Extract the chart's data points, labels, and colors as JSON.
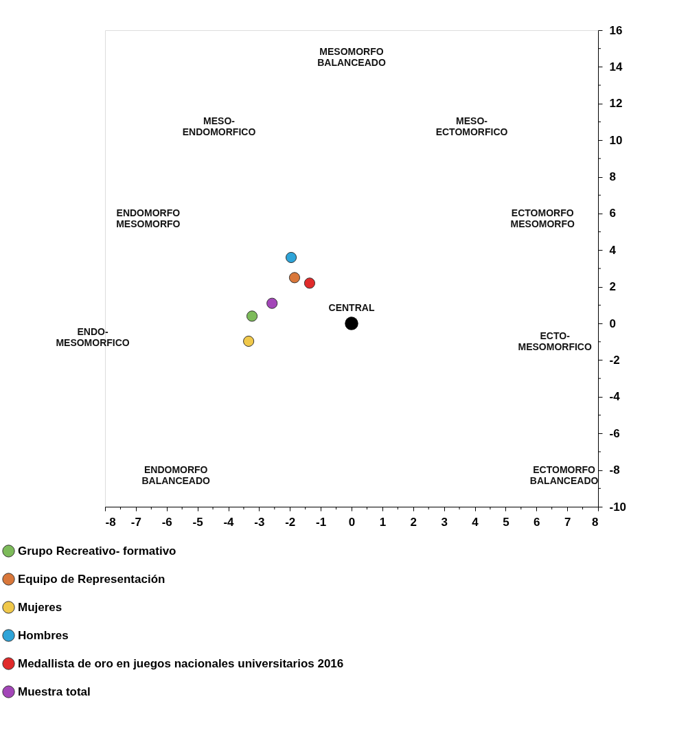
{
  "chart_data": {
    "type": "scatter",
    "series": [
      {
        "name": "Grupo Recreativo- formativo",
        "color": "#7dbb5a",
        "x": [
          -3.23
        ],
        "values": [
          0.4
        ]
      },
      {
        "name": "Equipo de Representación",
        "color": "#d9773a",
        "x": [
          -1.85
        ],
        "values": [
          2.5
        ]
      },
      {
        "name": "Mujeres",
        "color": "#f0c84a",
        "x": [
          -3.34
        ],
        "values": [
          -0.97
        ]
      },
      {
        "name": "Hombres",
        "color": "#2ea4d8",
        "x": [
          -1.96
        ],
        "values": [
          3.6
        ]
      },
      {
        "name": "Medallista de oro en juegos nacionales universitarios 2016",
        "color": "#e02a2a",
        "x": [
          -1.36
        ],
        "values": [
          2.2
        ]
      },
      {
        "name": "Muestra total",
        "color": "#a346b8",
        "x": [
          -2.58
        ],
        "values": [
          1.1
        ]
      },
      {
        "color": "#000000",
        "x": [
          0
        ],
        "values": [
          0
        ]
      }
    ],
    "annotations": [
      {
        "text": "CENTRAL",
        "x": 0,
        "y": 0
      },
      "MESOMORFO\nBALANCEADO",
      "MESO-\nENDOMORFICO",
      "MESO-\nECTOMORFICO",
      "ENDOMORFO\nMESOMORFO",
      "ECTOMORFO\nMESOMORFO",
      "ENDO-\nMESOMORFICO",
      "ECTO-\nMESOMORFICO",
      "ENDOMORFO\nBALANCEADO",
      "ECTOMORFO\nBALANCEADO"
    ],
    "xlim": [
      -8,
      8
    ],
    "xticks": [
      -8,
      {
        "value": -7.5,
        "label": null
      },
      -7,
      {
        "value": -6.5,
        "label": null
      },
      -6,
      {
        "value": -5.5,
        "label": null
      },
      -5,
      {
        "value": -4.5,
        "label": null
      },
      -4,
      {
        "value": -3.5,
        "label": null
      },
      -3,
      {
        "value": -2.5,
        "label": null
      },
      -2,
      {
        "value": -1.5,
        "label": null
      },
      -1,
      {
        "value": -0.5,
        "label": null
      },
      0,
      {
        "value": 0.5,
        "label": null
      },
      1,
      {
        "value": 1.5,
        "label": null
      },
      2,
      {
        "value": 2.5,
        "label": null
      },
      3,
      {
        "value": 3.5,
        "label": null
      },
      4,
      {
        "value": 4.5,
        "label": null
      },
      5,
      {
        "value": 5.5,
        "label": null
      },
      6,
      {
        "value": 6.5,
        "label": null
      },
      7,
      {
        "value": 7.5,
        "label": null
      },
      8
    ],
    "ylim": [
      -10,
      16
    ],
    "yticks": [
      -10,
      {
        "value": -9,
        "label": null
      },
      -8,
      {
        "value": -7,
        "label": null
      },
      -6,
      {
        "value": -5,
        "label": null
      },
      -4,
      {
        "value": -3,
        "label": null
      },
      -2,
      {
        "value": -1,
        "label": null
      },
      0,
      {
        "value": 1,
        "label": null
      },
      2,
      {
        "value": 3,
        "label": null
      },
      4,
      {
        "value": 5,
        "label": null
      },
      6,
      {
        "value": 7,
        "label": null
      },
      8,
      {
        "value": 9,
        "label": null
      },
      10,
      {
        "value": 11,
        "label": null
      },
      12,
      {
        "value": 13,
        "label": null
      },
      14,
      {
        "value": 15,
        "label": null
      },
      16
    ],
    "grid": false,
    "legend": "bottom",
    "marker": "circle"
  }
}
